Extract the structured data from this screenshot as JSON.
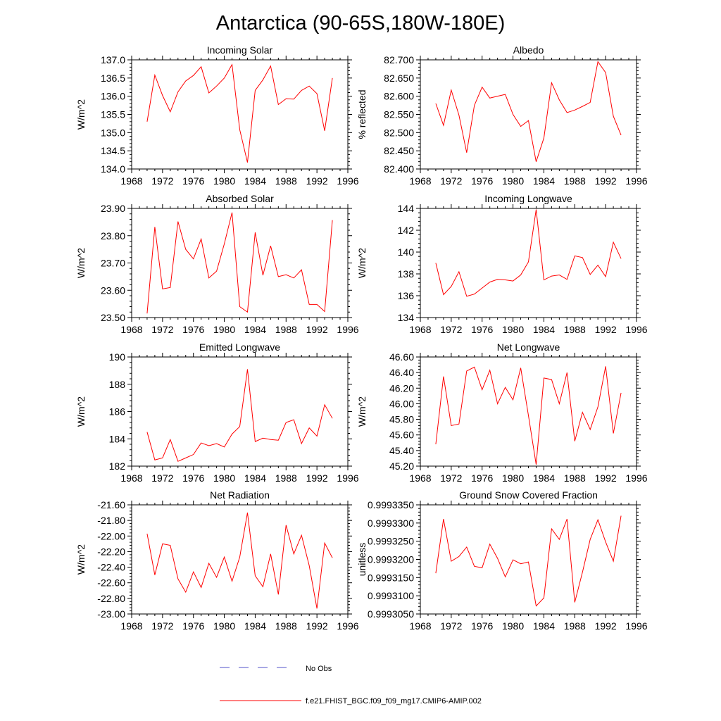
{
  "title": "Antarctica (90-65S,180W-180E)",
  "chart_data": [
    {
      "type": "line",
      "title": "Incoming Solar",
      "ylabel": "W/m^2",
      "xlim": [
        1968,
        1996
      ],
      "ylim": [
        134.0,
        137.0
      ],
      "xticks": [
        "1968",
        "1972",
        "1976",
        "1980",
        "1984",
        "1988",
        "1992",
        "1996"
      ],
      "yticks": [
        134.0,
        134.5,
        135.0,
        135.5,
        136.0,
        136.5,
        137.0
      ],
      "ytick_labels": [
        "134.0",
        "134.5",
        "135.0",
        "135.5",
        "136.0",
        "136.5",
        "137.0"
      ],
      "x": [
        1970,
        1971,
        1972,
        1973,
        1974,
        1975,
        1976,
        1977,
        1978,
        1979,
        1980,
        1981,
        1982,
        1983,
        1984,
        1985,
        1986,
        1987,
        1988,
        1989,
        1990,
        1991,
        1992,
        1993,
        1994
      ],
      "series": [
        {
          "name": "f.e21.FHIST_BGC.f09_f09_mg17.CMIP6-AMIP.002",
          "values": [
            135.3,
            136.58,
            136.02,
            135.57,
            136.12,
            136.42,
            136.57,
            136.81,
            136.09,
            136.28,
            136.5,
            136.87,
            135.08,
            134.18,
            136.16,
            136.45,
            136.83,
            135.77,
            135.93,
            135.92,
            136.16,
            136.28,
            136.07,
            135.05,
            136.5
          ]
        }
      ]
    },
    {
      "type": "line",
      "title": "Albedo",
      "ylabel": "% reflected",
      "xlim": [
        1968,
        1996
      ],
      "ylim": [
        82.4,
        82.7
      ],
      "xticks": [
        "1968",
        "1972",
        "1976",
        "1980",
        "1984",
        "1988",
        "1992",
        "1996"
      ],
      "yticks": [
        82.4,
        82.45,
        82.5,
        82.55,
        82.6,
        82.65,
        82.7
      ],
      "ytick_labels": [
        "82.400",
        "82.450",
        "82.500",
        "82.550",
        "82.600",
        "82.650",
        "82.700"
      ],
      "x": [
        1970,
        1971,
        1972,
        1973,
        1974,
        1975,
        1976,
        1977,
        1978,
        1979,
        1980,
        1981,
        1982,
        1983,
        1984,
        1985,
        1986,
        1987,
        1988,
        1989,
        1990,
        1991,
        1992,
        1993,
        1994
      ],
      "series": [
        {
          "name": "f.e21.FHIST_BGC.f09_f09_mg17.CMIP6-AMIP.002",
          "values": [
            82.58,
            82.52,
            82.617,
            82.548,
            82.445,
            82.575,
            82.625,
            82.595,
            82.6,
            82.605,
            82.55,
            82.517,
            82.533,
            82.42,
            82.485,
            82.637,
            82.59,
            82.555,
            82.562,
            82.572,
            82.583,
            82.695,
            82.665,
            82.545,
            82.493
          ]
        }
      ]
    },
    {
      "type": "line",
      "title": "Absorbed Solar",
      "ylabel": "W/m^2",
      "xlim": [
        1968,
        1996
      ],
      "ylim": [
        23.5,
        23.9
      ],
      "xticks": [
        "1968",
        "1972",
        "1976",
        "1980",
        "1984",
        "1988",
        "1992",
        "1996"
      ],
      "yticks": [
        23.5,
        23.6,
        23.7,
        23.8,
        23.9
      ],
      "ytick_labels": [
        "23.50",
        "23.60",
        "23.70",
        "23.80",
        "23.90"
      ],
      "x": [
        1970,
        1971,
        1972,
        1973,
        1974,
        1975,
        1976,
        1977,
        1978,
        1979,
        1980,
        1981,
        1982,
        1983,
        1984,
        1985,
        1986,
        1987,
        1988,
        1989,
        1990,
        1991,
        1992,
        1993,
        1994
      ],
      "series": [
        {
          "name": "f.e21.FHIST_BGC.f09_f09_mg17.CMIP6-AMIP.002",
          "values": [
            23.515,
            23.832,
            23.605,
            23.61,
            23.852,
            23.75,
            23.715,
            23.788,
            23.645,
            23.67,
            23.77,
            23.885,
            23.54,
            23.52,
            23.812,
            23.655,
            23.763,
            23.65,
            23.657,
            23.645,
            23.675,
            23.548,
            23.548,
            23.522,
            23.857
          ]
        }
      ]
    },
    {
      "type": "line",
      "title": "Incoming Longwave",
      "ylabel": "W/m^2",
      "xlim": [
        1968,
        1996
      ],
      "ylim": [
        134,
        144
      ],
      "xticks": [
        "1968",
        "1972",
        "1976",
        "1980",
        "1984",
        "1988",
        "1992",
        "1996"
      ],
      "yticks": [
        134,
        136,
        138,
        140,
        142,
        144
      ],
      "ytick_labels": [
        "134",
        "136",
        "138",
        "140",
        "142",
        "144"
      ],
      "x": [
        1970,
        1971,
        1972,
        1973,
        1974,
        1975,
        1976,
        1977,
        1978,
        1979,
        1980,
        1981,
        1982,
        1983,
        1984,
        1985,
        1986,
        1987,
        1988,
        1989,
        1990,
        1991,
        1992,
        1993,
        1994
      ],
      "series": [
        {
          "name": "f.e21.FHIST_BGC.f09_f09_mg17.CMIP6-AMIP.002",
          "values": [
            139.0,
            136.1,
            136.85,
            138.2,
            135.95,
            136.15,
            136.7,
            137.25,
            137.5,
            137.45,
            137.35,
            137.9,
            139.1,
            143.9,
            137.45,
            137.8,
            137.9,
            137.5,
            139.65,
            139.5,
            137.95,
            138.8,
            137.75,
            140.9,
            139.4
          ]
        }
      ]
    },
    {
      "type": "line",
      "title": "Emitted Longwave",
      "ylabel": "W/m^2",
      "xlim": [
        1968,
        1996
      ],
      "ylim": [
        182,
        190
      ],
      "xticks": [
        "1968",
        "1972",
        "1976",
        "1980",
        "1984",
        "1988",
        "1992",
        "1996"
      ],
      "yticks": [
        182,
        184,
        186,
        188,
        190
      ],
      "ytick_labels": [
        "182",
        "184",
        "186",
        "188",
        "190"
      ],
      "x": [
        1970,
        1971,
        1972,
        1973,
        1974,
        1975,
        1976,
        1977,
        1978,
        1979,
        1980,
        1981,
        1982,
        1983,
        1984,
        1985,
        1986,
        1987,
        1988,
        1989,
        1990,
        1991,
        1992,
        1993,
        1994
      ],
      "series": [
        {
          "name": "f.e21.FHIST_BGC.f09_f09_mg17.CMIP6-AMIP.002",
          "values": [
            184.5,
            182.45,
            182.6,
            183.95,
            182.35,
            182.6,
            182.85,
            183.7,
            183.5,
            183.65,
            183.4,
            184.35,
            184.9,
            189.1,
            183.8,
            184.05,
            183.95,
            183.9,
            185.2,
            185.4,
            183.65,
            184.8,
            184.2,
            186.5,
            185.5
          ]
        }
      ]
    },
    {
      "type": "line",
      "title": "Net Longwave",
      "ylabel": "W/m^2",
      "xlim": [
        1968,
        1996
      ],
      "ylim": [
        45.2,
        46.6
      ],
      "xticks": [
        "1968",
        "1972",
        "1976",
        "1980",
        "1984",
        "1988",
        "1992",
        "1996"
      ],
      "yticks": [
        45.2,
        45.4,
        45.6,
        45.8,
        46.0,
        46.2,
        46.4,
        46.6
      ],
      "ytick_labels": [
        "45.20",
        "45.40",
        "45.60",
        "45.80",
        "46.00",
        "46.20",
        "46.40",
        "46.60"
      ],
      "x": [
        1970,
        1971,
        1972,
        1973,
        1974,
        1975,
        1976,
        1977,
        1978,
        1979,
        1980,
        1981,
        1982,
        1983,
        1984,
        1985,
        1986,
        1987,
        1988,
        1989,
        1990,
        1991,
        1992,
        1993,
        1994
      ],
      "series": [
        {
          "name": "f.e21.FHIST_BGC.f09_f09_mg17.CMIP6-AMIP.002",
          "values": [
            45.48,
            46.35,
            45.72,
            45.74,
            46.42,
            46.47,
            46.18,
            46.43,
            46.0,
            46.21,
            46.05,
            46.46,
            45.85,
            45.22,
            46.33,
            46.31,
            46.0,
            46.4,
            45.52,
            45.89,
            45.67,
            45.96,
            46.48,
            45.62,
            46.14
          ]
        }
      ]
    },
    {
      "type": "line",
      "title": "Net Radiation",
      "ylabel": "W/m^2",
      "xlim": [
        1968,
        1996
      ],
      "ylim": [
        -23.0,
        -21.6
      ],
      "xticks": [
        "1968",
        "1972",
        "1976",
        "1980",
        "1984",
        "1988",
        "1992",
        "1996"
      ],
      "yticks": [
        -23.0,
        -22.8,
        -22.6,
        -22.4,
        -22.2,
        -22.0,
        -21.8,
        -21.6
      ],
      "ytick_labels": [
        "-23.00",
        "-22.80",
        "-22.60",
        "-22.40",
        "-22.20",
        "-22.00",
        "-21.80",
        "-21.60"
      ],
      "x": [
        1970,
        1971,
        1972,
        1973,
        1974,
        1975,
        1976,
        1977,
        1978,
        1979,
        1980,
        1981,
        1982,
        1983,
        1984,
        1985,
        1986,
        1987,
        1988,
        1989,
        1990,
        1991,
        1992,
        1993,
        1994
      ],
      "series": [
        {
          "name": "f.e21.FHIST_BGC.f09_f09_mg17.CMIP6-AMIP.002",
          "values": [
            -21.97,
            -22.5,
            -22.1,
            -22.12,
            -22.55,
            -22.72,
            -22.46,
            -22.66,
            -22.35,
            -22.53,
            -22.27,
            -22.58,
            -22.27,
            -21.7,
            -22.51,
            -22.65,
            -22.23,
            -22.75,
            -21.86,
            -22.23,
            -21.99,
            -22.38,
            -22.93,
            -22.09,
            -22.28
          ]
        }
      ]
    },
    {
      "type": "line",
      "title": "Ground Snow Covered Fraction",
      "ylabel": "unitless",
      "xlim": [
        1968,
        1996
      ],
      "ylim": [
        0.999305,
        0.999335
      ],
      "xticks": [
        "1968",
        "1972",
        "1976",
        "1980",
        "1984",
        "1988",
        "1992",
        "1996"
      ],
      "yticks": [
        0.999305,
        0.99931,
        0.999315,
        0.99932,
        0.999325,
        0.99933,
        0.999335
      ],
      "ytick_labels": [
        "0.9993050",
        "0.9993100",
        "0.9993150",
        "0.9993200",
        "0.9993250",
        "0.9993300",
        "0.9993350"
      ],
      "x": [
        1970,
        1971,
        1972,
        1973,
        1974,
        1975,
        1976,
        1977,
        1978,
        1979,
        1980,
        1981,
        1982,
        1983,
        1984,
        1985,
        1986,
        1987,
        1988,
        1989,
        1990,
        1991,
        1992,
        1993,
        1994
      ],
      "series": [
        {
          "name": "f.e21.FHIST_BGC.f09_f09_mg17.CMIP6-AMIP.002",
          "values": [
            0.9993162,
            0.9993311,
            0.9993195,
            0.9993208,
            0.9993234,
            0.9993181,
            0.9993177,
            0.9993242,
            0.9993203,
            0.9993152,
            0.9993199,
            0.9993188,
            0.9993193,
            0.9993072,
            0.9993094,
            0.9993284,
            0.9993255,
            0.9993311,
            0.9993082,
            0.9993165,
            0.9993255,
            0.9993309,
            0.9993248,
            0.9993195,
            0.999332
          ]
        }
      ]
    }
  ],
  "legend": {
    "placement": "bottom-center",
    "entries": [
      {
        "label": "No Obs",
        "color": "#5050c8",
        "style": "dashed"
      },
      {
        "label": "f.e21.FHIST_BGC.f09_f09_mg17.CMIP6-AMIP.002",
        "color": "#ff0000",
        "style": "solid"
      }
    ]
  },
  "colors": {
    "model_line": "#ff0000",
    "obs_line": "#5050c8"
  }
}
